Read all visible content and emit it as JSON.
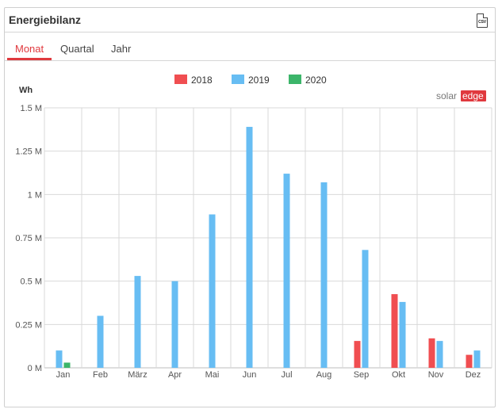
{
  "widget": {
    "title": "Energiebilanz",
    "export_icon": "csv-download-icon",
    "export_icon_text": "CSV"
  },
  "tabs": [
    {
      "label": "Monat",
      "active": true
    },
    {
      "label": "Quartal",
      "active": false
    },
    {
      "label": "Jahr",
      "active": false
    }
  ],
  "brand": {
    "logo_part1": "solar",
    "logo_part2": "edge",
    "logo_accent": "#e0393e"
  },
  "colors": {
    "accent": "#e0393e",
    "grid": "#d9d9d9"
  },
  "chart_data": {
    "type": "bar",
    "ylabel": "Wh",
    "xlabel": "",
    "ylim": [
      0,
      1500000
    ],
    "y_ticks": [
      {
        "value": 0,
        "label": "0 M"
      },
      {
        "value": 250000,
        "label": "0.25 M"
      },
      {
        "value": 500000,
        "label": "0.5 M"
      },
      {
        "value": 750000,
        "label": "0.75 M"
      },
      {
        "value": 1000000,
        "label": "1 M"
      },
      {
        "value": 1250000,
        "label": "1.25 M"
      },
      {
        "value": 1500000,
        "label": "1.5 M"
      }
    ],
    "categories": [
      "Jan",
      "Feb",
      "März",
      "Apr",
      "Mai",
      "Jun",
      "Jul",
      "Aug",
      "Sep",
      "Okt",
      "Nov",
      "Dez"
    ],
    "legend_position": "top-center",
    "grid": true,
    "series": [
      {
        "name": "2018",
        "color": "#f04e51",
        "values": [
          null,
          null,
          null,
          null,
          null,
          null,
          null,
          null,
          155000,
          425000,
          170000,
          75000
        ]
      },
      {
        "name": "2019",
        "color": "#67bdf3",
        "values": [
          100000,
          300000,
          530000,
          500000,
          885000,
          1390000,
          1120000,
          1070000,
          680000,
          380000,
          155000,
          100000
        ]
      },
      {
        "name": "2020",
        "color": "#3cb56a",
        "values": [
          30000,
          null,
          null,
          null,
          null,
          null,
          null,
          null,
          null,
          null,
          null,
          null
        ]
      }
    ]
  }
}
